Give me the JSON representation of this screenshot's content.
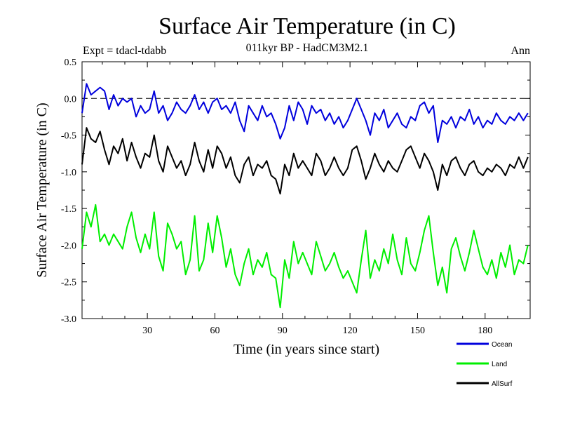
{
  "chart_data": {
    "type": "line",
    "title": "Surface Air Temperature (in C)",
    "subtitle": "011kyr BP - HadCM3M2.1",
    "left_label": "Expt = tdacl-tdabb",
    "right_label": "Ann",
    "xlabel": "Time (in years since start)",
    "ylabel": "Surface Air Temperature (in C)",
    "xlim": [
      1,
      200
    ],
    "ylim": [
      -3.0,
      0.5
    ],
    "xticks": [
      30,
      60,
      90,
      120,
      150,
      180
    ],
    "yticks": [
      0.5,
      0.0,
      -0.5,
      -1.0,
      -1.5,
      -2.0,
      -2.5,
      -3.0
    ],
    "ytick_labels": [
      "0.5",
      "0.0",
      "-0.5",
      "-1.0",
      "-1.5",
      "-2.0",
      "-2.5",
      "-3.0"
    ],
    "reference_line": 0.0,
    "series": [
      {
        "name": "Ocean",
        "color": "#0000dd",
        "x": [
          1,
          3,
          5,
          7,
          9,
          11,
          13,
          15,
          17,
          19,
          21,
          23,
          25,
          27,
          29,
          31,
          33,
          35,
          37,
          39,
          41,
          43,
          45,
          47,
          49,
          51,
          53,
          55,
          57,
          59,
          61,
          63,
          65,
          67,
          69,
          71,
          73,
          75,
          77,
          79,
          81,
          83,
          85,
          87,
          89,
          91,
          93,
          95,
          97,
          99,
          101,
          103,
          105,
          107,
          109,
          111,
          113,
          115,
          117,
          119,
          121,
          123,
          125,
          127,
          129,
          131,
          133,
          135,
          137,
          139,
          141,
          143,
          145,
          147,
          149,
          151,
          153,
          155,
          157,
          159,
          161,
          163,
          165,
          167,
          169,
          171,
          173,
          175,
          177,
          179,
          181,
          183,
          185,
          187,
          189,
          191,
          193,
          195,
          197,
          199
        ],
        "values": [
          -0.2,
          0.2,
          0.05,
          0.1,
          0.15,
          0.1,
          -0.15,
          0.05,
          -0.1,
          0.0,
          -0.05,
          0.0,
          -0.25,
          -0.1,
          -0.2,
          -0.15,
          0.1,
          -0.2,
          -0.1,
          -0.3,
          -0.2,
          -0.05,
          -0.15,
          -0.2,
          -0.1,
          0.05,
          -0.15,
          -0.05,
          -0.2,
          -0.05,
          0.0,
          -0.15,
          -0.1,
          -0.2,
          -0.05,
          -0.3,
          -0.45,
          -0.1,
          -0.2,
          -0.3,
          -0.1,
          -0.25,
          -0.2,
          -0.35,
          -0.55,
          -0.4,
          -0.1,
          -0.3,
          -0.05,
          -0.15,
          -0.35,
          -0.1,
          -0.2,
          -0.15,
          -0.3,
          -0.2,
          -0.35,
          -0.25,
          -0.4,
          -0.3,
          -0.15,
          0.0,
          -0.15,
          -0.3,
          -0.5,
          -0.2,
          -0.3,
          -0.15,
          -0.4,
          -0.3,
          -0.2,
          -0.35,
          -0.4,
          -0.25,
          -0.3,
          -0.1,
          -0.05,
          -0.2,
          -0.1,
          -0.6,
          -0.3,
          -0.35,
          -0.25,
          -0.4,
          -0.25,
          -0.3,
          -0.15,
          -0.35,
          -0.25,
          -0.4,
          -0.3,
          -0.35,
          -0.2,
          -0.3,
          -0.35,
          -0.25,
          -0.3,
          -0.2,
          -0.3,
          -0.2
        ]
      },
      {
        "name": "Land",
        "color": "#00ee00",
        "x": [
          1,
          3,
          5,
          7,
          9,
          11,
          13,
          15,
          17,
          19,
          21,
          23,
          25,
          27,
          29,
          31,
          33,
          35,
          37,
          39,
          41,
          43,
          45,
          47,
          49,
          51,
          53,
          55,
          57,
          59,
          61,
          63,
          65,
          67,
          69,
          71,
          73,
          75,
          77,
          79,
          81,
          83,
          85,
          87,
          89,
          91,
          93,
          95,
          97,
          99,
          101,
          103,
          105,
          107,
          109,
          111,
          113,
          115,
          117,
          119,
          121,
          123,
          125,
          127,
          129,
          131,
          133,
          135,
          137,
          139,
          141,
          143,
          145,
          147,
          149,
          151,
          153,
          155,
          157,
          159,
          161,
          163,
          165,
          167,
          169,
          171,
          173,
          175,
          177,
          179,
          181,
          183,
          185,
          187,
          189,
          191,
          193,
          195,
          197,
          199
        ],
        "values": [
          -2.05,
          -1.55,
          -1.75,
          -1.45,
          -1.95,
          -1.85,
          -2.0,
          -1.85,
          -1.95,
          -2.05,
          -1.75,
          -1.55,
          -1.9,
          -2.1,
          -1.85,
          -2.05,
          -1.55,
          -2.15,
          -2.35,
          -1.7,
          -1.85,
          -2.05,
          -1.95,
          -2.4,
          -2.2,
          -1.6,
          -2.35,
          -2.2,
          -1.7,
          -2.1,
          -1.6,
          -1.9,
          -2.3,
          -2.05,
          -2.4,
          -2.55,
          -2.25,
          -2.05,
          -2.4,
          -2.2,
          -2.3,
          -2.1,
          -2.4,
          -2.45,
          -2.85,
          -2.2,
          -2.45,
          -1.95,
          -2.25,
          -2.1,
          -2.25,
          -2.4,
          -1.95,
          -2.15,
          -2.35,
          -2.25,
          -2.1,
          -2.3,
          -2.45,
          -2.35,
          -2.5,
          -2.65,
          -2.2,
          -1.8,
          -2.45,
          -2.2,
          -2.35,
          -2.05,
          -2.25,
          -1.85,
          -2.2,
          -2.4,
          -1.9,
          -2.25,
          -2.35,
          -2.1,
          -1.8,
          -1.6,
          -2.1,
          -2.55,
          -2.3,
          -2.65,
          -2.05,
          -1.9,
          -2.15,
          -2.35,
          -2.1,
          -1.8,
          -2.05,
          -2.3,
          -2.4,
          -2.2,
          -2.45,
          -2.1,
          -2.3,
          -2.0,
          -2.4,
          -2.2,
          -2.25,
          -2.0
        ]
      },
      {
        "name": "AllSurf",
        "color": "#000000",
        "x": [
          1,
          3,
          5,
          7,
          9,
          11,
          13,
          15,
          17,
          19,
          21,
          23,
          25,
          27,
          29,
          31,
          33,
          35,
          37,
          39,
          41,
          43,
          45,
          47,
          49,
          51,
          53,
          55,
          57,
          59,
          61,
          63,
          65,
          67,
          69,
          71,
          73,
          75,
          77,
          79,
          81,
          83,
          85,
          87,
          89,
          91,
          93,
          95,
          97,
          99,
          101,
          103,
          105,
          107,
          109,
          111,
          113,
          115,
          117,
          119,
          121,
          123,
          125,
          127,
          129,
          131,
          133,
          135,
          137,
          139,
          141,
          143,
          145,
          147,
          149,
          151,
          153,
          155,
          157,
          159,
          161,
          163,
          165,
          167,
          169,
          171,
          173,
          175,
          177,
          179,
          181,
          183,
          185,
          187,
          189,
          191,
          193,
          195,
          197,
          199
        ],
        "values": [
          -0.9,
          -0.4,
          -0.55,
          -0.6,
          -0.45,
          -0.7,
          -0.9,
          -0.65,
          -0.75,
          -0.55,
          -0.85,
          -0.6,
          -0.8,
          -0.95,
          -0.75,
          -0.8,
          -0.5,
          -0.85,
          -1.0,
          -0.65,
          -0.8,
          -0.95,
          -0.85,
          -1.05,
          -0.9,
          -0.6,
          -0.85,
          -1.0,
          -0.7,
          -0.95,
          -0.65,
          -0.75,
          -0.95,
          -0.8,
          -1.05,
          -1.15,
          -0.9,
          -0.8,
          -1.05,
          -0.9,
          -0.95,
          -0.85,
          -1.05,
          -1.1,
          -1.3,
          -0.9,
          -1.05,
          -0.75,
          -0.95,
          -0.85,
          -0.95,
          -1.05,
          -0.75,
          -0.85,
          -1.05,
          -0.95,
          -0.8,
          -0.95,
          -1.05,
          -0.95,
          -0.7,
          -0.65,
          -0.85,
          -1.1,
          -0.95,
          -0.75,
          -0.9,
          -1.0,
          -0.85,
          -0.95,
          -1.0,
          -0.85,
          -0.7,
          -0.65,
          -0.8,
          -0.95,
          -0.75,
          -0.85,
          -1.0,
          -1.25,
          -0.9,
          -1.05,
          -0.85,
          -0.8,
          -0.95,
          -1.05,
          -0.9,
          -0.85,
          -1.0,
          -1.05,
          -0.95,
          -1.0,
          -0.9,
          -0.95,
          -1.05,
          -0.9,
          -0.95,
          -0.8,
          -0.95,
          -0.8
        ]
      }
    ],
    "legend": [
      {
        "label": "Ocean",
        "color": "#0000dd"
      },
      {
        "label": "Land",
        "color": "#00ee00"
      },
      {
        "label": "AllSurf",
        "color": "#000000"
      }
    ]
  }
}
